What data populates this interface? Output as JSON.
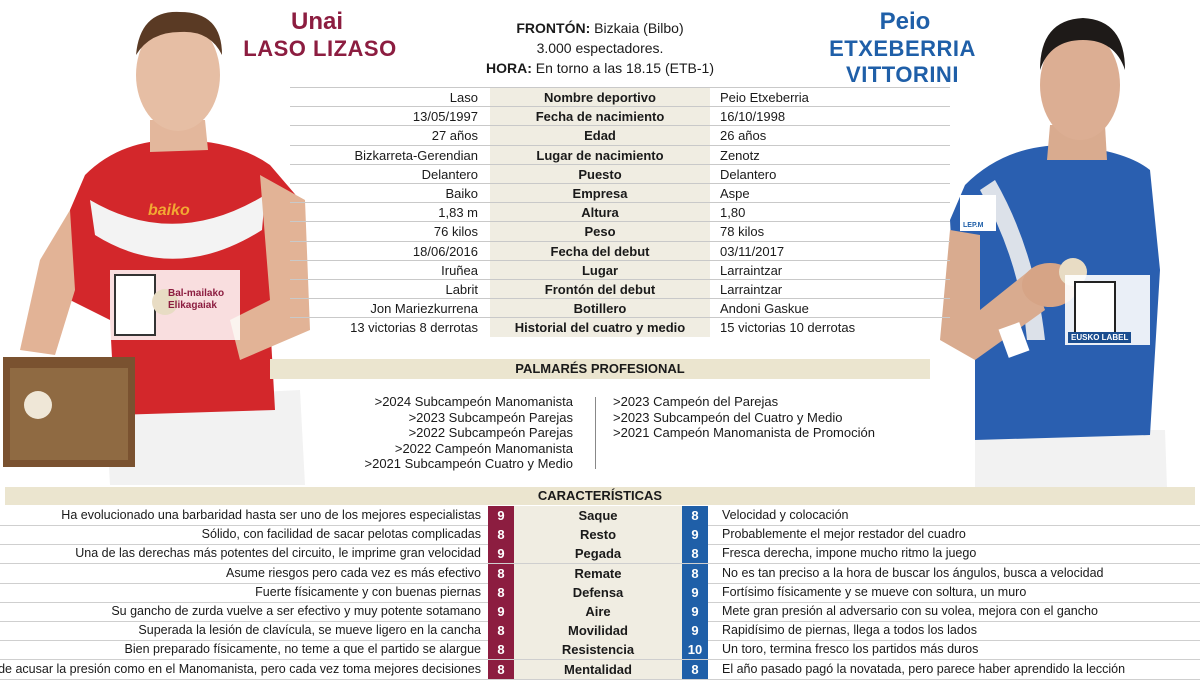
{
  "players": {
    "left": {
      "first": "Unai",
      "last": "LASO LIZASO",
      "color": "#8c1d40"
    },
    "right": {
      "first": "Peio",
      "last": "ETXEBERRIA VITTORINI",
      "color": "#1f5fa8"
    }
  },
  "venue": {
    "fronton_label": "FRONTÓN:",
    "fronton_value": "Bizkaia (Bilbo)",
    "spectators": "3.000 espectadores.",
    "hora_label": "HORA:",
    "hora_value": "En torno a las 18.15 (ETB-1)"
  },
  "comparison": [
    {
      "label": "Nombre deportivo",
      "left": "Laso",
      "right": "Peio Etxeberria"
    },
    {
      "label": "Fecha de nacimiento",
      "left": "13/05/1997",
      "right": "16/10/1998"
    },
    {
      "label": "Edad",
      "left": "27 años",
      "right": "26 años"
    },
    {
      "label": "Lugar de nacimiento",
      "left": "Bizkarreta-Gerendian",
      "right": "Zenotz"
    },
    {
      "label": "Puesto",
      "left": "Delantero",
      "right": "Delantero"
    },
    {
      "label": "Empresa",
      "left": "Baiko",
      "right": "Aspe"
    },
    {
      "label": "Altura",
      "left": "1,83 m",
      "right": "1,80"
    },
    {
      "label": "Peso",
      "left": "76 kilos",
      "right": "78 kilos"
    },
    {
      "label": "Fecha del debut",
      "left": "18/06/2016",
      "right": "03/11/2017"
    },
    {
      "label": "Lugar",
      "left": "Iruñea",
      "right": "Larraintzar"
    },
    {
      "label": "Frontón del debut",
      "left": "Labrit",
      "right": "Larraintzar"
    },
    {
      "label": "Botillero",
      "left": "Jon Mariezkurrena",
      "right": "Andoni Gaskue"
    },
    {
      "label": "Historial del cuatro y medio",
      "left": "13 victorias 8 derrotas",
      "right": "15 victorias 10 derrotas"
    }
  ],
  "palmares": {
    "title": "PALMARÉS PROFESIONAL",
    "left": [
      ">2024 Subcampeón Manomanista",
      ">2023 Subcampeón Parejas",
      ">2022 Subcampeón Parejas",
      ">2022 Campeón Manomanista",
      ">2021 Subcampeón Cuatro y Medio"
    ],
    "right": [
      ">2023 Campeón del Parejas",
      ">2023 Subcampeón del Cuatro y Medio",
      ">2021 Campeón Manomanista de Promoción"
    ]
  },
  "caracteristicas": {
    "title": "CARACTERÍSTICAS",
    "rows": [
      {
        "label": "Saque",
        "left_score": "9",
        "right_score": "8",
        "left_text": "Ha evolucionado una barbaridad hasta ser uno de los mejores especialistas",
        "right_text": "Velocidad y colocación"
      },
      {
        "label": "Resto",
        "left_score": "8",
        "right_score": "9",
        "left_text": "Sólido, con facilidad de sacar pelotas complicadas",
        "right_text": "Probablemente el mejor restador del cuadro"
      },
      {
        "label": "Pegada",
        "left_score": "9",
        "right_score": "8",
        "left_text": "Una de las derechas más potentes del circuito, le imprime gran velocidad",
        "right_text": "Fresca derecha, impone mucho ritmo la juego"
      },
      {
        "label": "Remate",
        "left_score": "8",
        "right_score": "8",
        "left_text": "Asume riesgos pero cada vez es más efectivo",
        "right_text": "No es tan preciso a la hora de buscar los ángulos, busca a velocidad"
      },
      {
        "label": "Defensa",
        "left_score": "8",
        "right_score": "9",
        "left_text": "Fuerte físicamente y con buenas piernas",
        "right_text": "Fortísimo físicamente y se mueve con soltura, un muro"
      },
      {
        "label": "Aire",
        "left_score": "9",
        "right_score": "9",
        "left_text": "Su gancho de zurda vuelve a ser efectivo y muy potente sotamano",
        "right_text": "Mete gran presión al adversario con su volea, mejora con el gancho"
      },
      {
        "label": "Movilidad",
        "left_score": "8",
        "right_score": "9",
        "left_text": "Superada la lesión de clavícula, se mueve ligero en la cancha",
        "right_text": "Rapidísimo de piernas, llega a todos los lados"
      },
      {
        "label": "Resistencia",
        "left_score": "8",
        "right_score": "10",
        "left_text": "Bien preparado físicamente, no teme a que el partido se alargue",
        "right_text": "Un toro, termina fresco los partidos más duros"
      },
      {
        "label": "Mentalidad",
        "left_score": "8",
        "right_score": "8",
        "left_text": "Puede acusar la presión como en el Manomanista, pero cada vez toma mejores decisiones",
        "right_text": "El año pasado pagó la novatada, pero parece haber aprendido la lección"
      }
    ]
  },
  "logos": {
    "baiko": "baiko",
    "eusko_label": "EUSKO LABEL",
    "ball_left": "Bal-mailako Elikagaiak",
    "lepm": "LEP.M"
  }
}
